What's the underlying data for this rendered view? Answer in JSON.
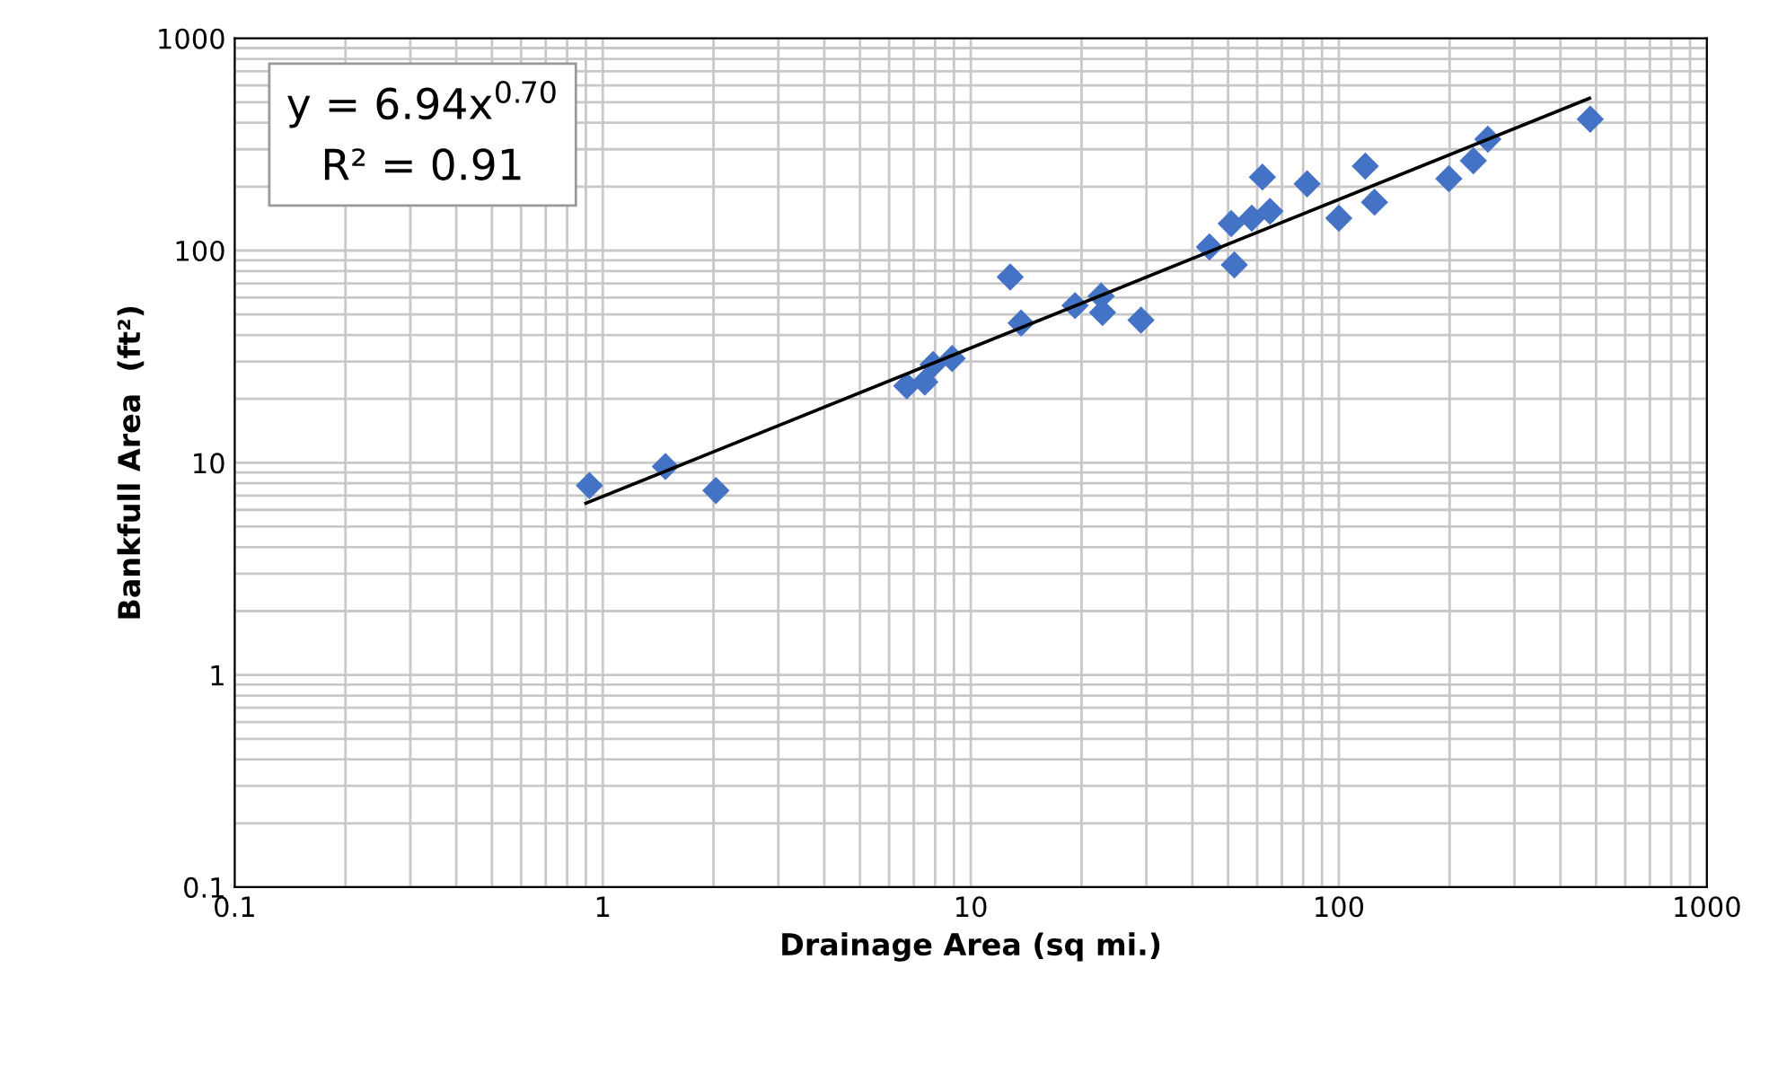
{
  "chart_data": {
    "type": "scatter",
    "xlabel": "Drainage Area (sq mi.)",
    "ylabel": "Bankfull Area  (ft²)",
    "log": "xy",
    "xlim": [
      0.1,
      1000
    ],
    "ylim": [
      0.1,
      1000
    ],
    "xticks": [
      0.1,
      1,
      10,
      100,
      1000
    ],
    "yticks": [
      0.1,
      1,
      10,
      100,
      1000
    ],
    "grid": true,
    "legend": false,
    "marker": "diamond",
    "annotations": [
      "y = 6.94x$^{0.70}$\nR² = 0.91"
    ],
    "series": [
      {
        "color": "#4472c4",
        "x": [
          0.92,
          1.48,
          2.03,
          6.7,
          7.5,
          7.9,
          8.9,
          12.8,
          13.7,
          19.2,
          22.6,
          22.8,
          29,
          44.5,
          51,
          52,
          58,
          65,
          62,
          82,
          100,
          118,
          125,
          199,
          232,
          254,
          482
        ],
        "values": [
          7.8,
          9.6,
          7.4,
          23,
          24,
          29,
          31,
          75,
          45.5,
          55,
          61,
          51,
          47,
          104,
          134,
          85.5,
          142,
          153,
          222,
          206,
          142,
          250,
          169,
          218,
          265,
          335,
          416
        ]
      },
      {
        "type": "line",
        "color": "#000000",
        "marker": "none",
        "x": [
          0.9,
          480
        ],
        "values": [
          6.44,
          522
        ]
      }
    ]
  }
}
